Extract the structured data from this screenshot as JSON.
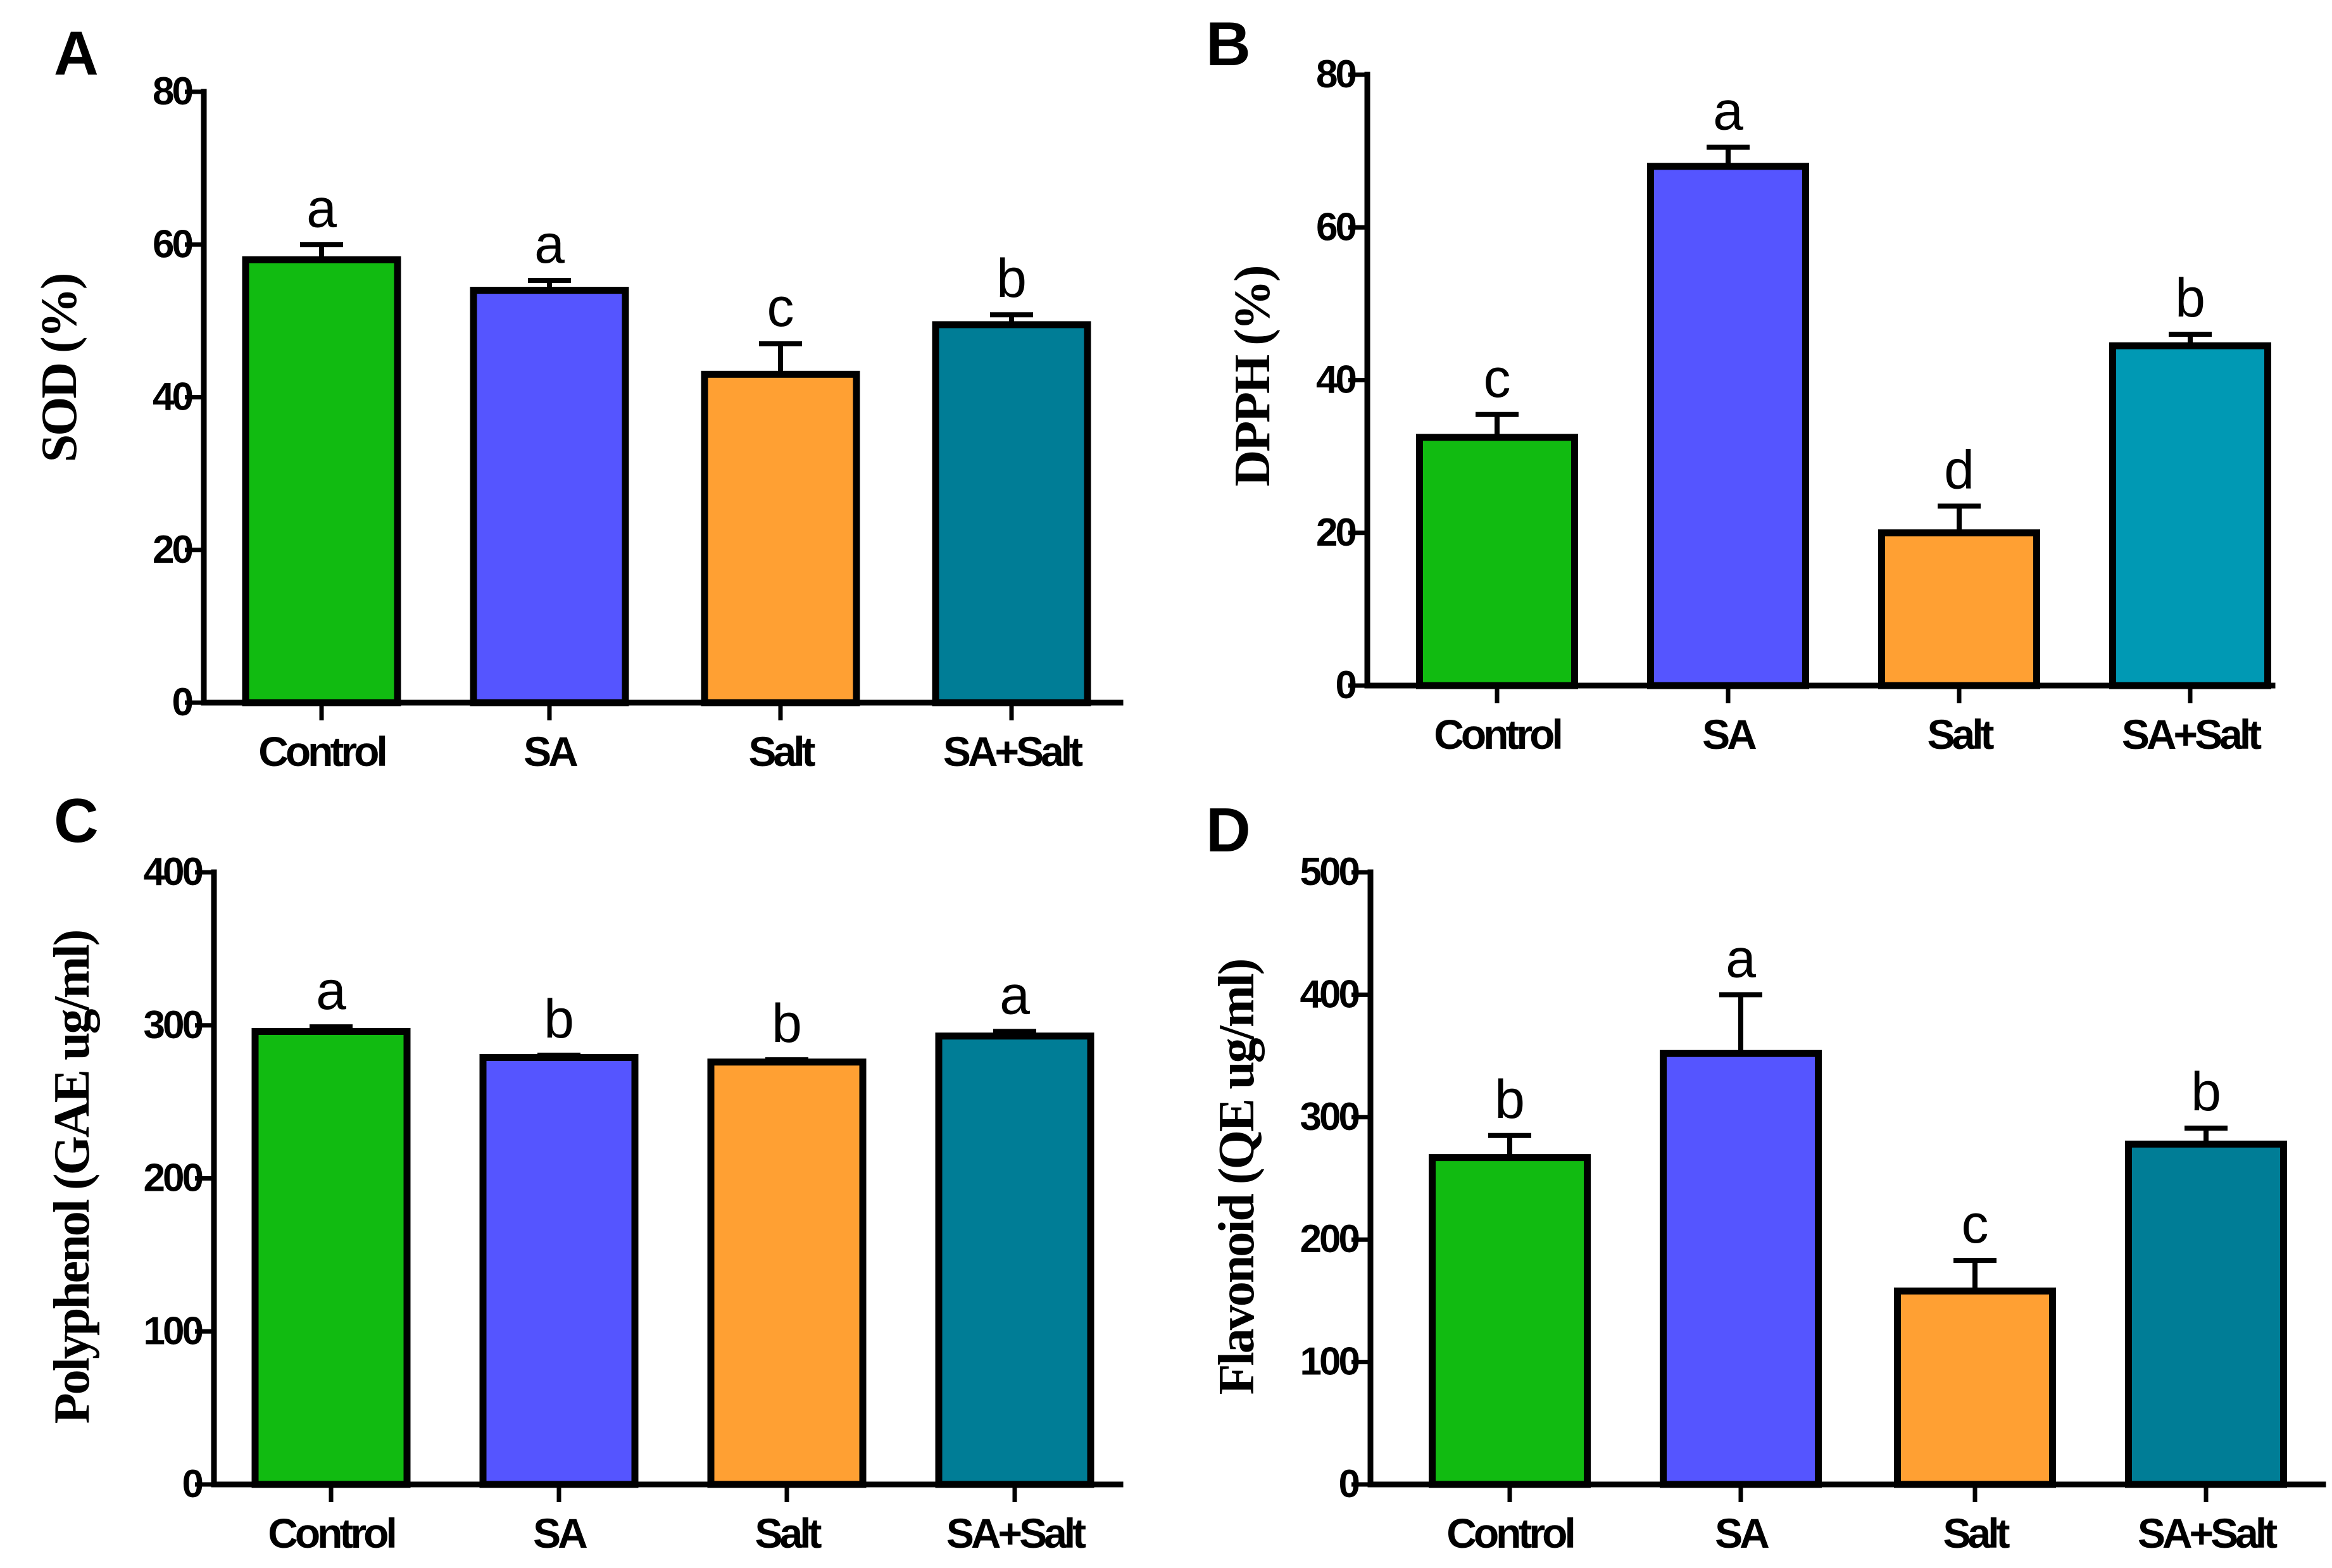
{
  "chart_data": [
    {
      "panel": "A",
      "type": "bar",
      "ylabel": "SOD (%)",
      "ylim": [
        0,
        80
      ],
      "yticks": [
        0,
        20,
        40,
        60,
        80
      ],
      "categories": [
        "Control",
        "SA",
        "Salt",
        "SA+Salt"
      ],
      "values": [
        58,
        54,
        43,
        49.5
      ],
      "errors": [
        2,
        1.3,
        4,
        1.3
      ],
      "labels": [
        "a",
        "a",
        "c",
        "b"
      ],
      "colors": [
        "#11bb11",
        "#5555ff",
        "#ffa033",
        "#007d96"
      ]
    },
    {
      "panel": "B",
      "type": "bar",
      "ylabel": "DPPH (%)",
      "ylim": [
        0,
        80
      ],
      "yticks": [
        0,
        20,
        40,
        60,
        80
      ],
      "categories": [
        "Control",
        "SA",
        "Salt",
        "SA+Salt"
      ],
      "values": [
        32.5,
        68,
        20,
        44.5
      ],
      "errors": [
        3,
        2.5,
        3.5,
        1.5
      ],
      "labels": [
        "c",
        "a",
        "d",
        "b"
      ],
      "colors": [
        "#11bb11",
        "#5555ff",
        "#ffa033",
        "#0099b4"
      ]
    },
    {
      "panel": "C",
      "type": "bar",
      "ylabel": "Polyphenol (GAE ug/ml)",
      "ylim": [
        0,
        400
      ],
      "yticks": [
        0,
        100,
        200,
        300,
        400
      ],
      "categories": [
        "Control",
        "SA",
        "Salt",
        "SA+Salt"
      ],
      "values": [
        296,
        279,
        276,
        293
      ],
      "errors": [
        3,
        1.5,
        1.5,
        3
      ],
      "labels": [
        "a",
        "b",
        "b",
        "a"
      ],
      "colors": [
        "#11bb11",
        "#5555ff",
        "#ffa033",
        "#007d96"
      ]
    },
    {
      "panel": "D",
      "type": "bar",
      "ylabel": "Flavonoid (QE ug/ml)",
      "ylim": [
        0,
        500
      ],
      "yticks": [
        0,
        100,
        200,
        300,
        400,
        500
      ],
      "categories": [
        "Control",
        "SA",
        "Salt",
        "SA+Salt"
      ],
      "values": [
        267,
        352,
        158,
        278
      ],
      "errors": [
        18,
        48,
        25,
        13
      ],
      "labels": [
        "b",
        "a",
        "c",
        "b"
      ],
      "colors": [
        "#11bb11",
        "#5555ff",
        "#ffa033",
        "#007d96"
      ]
    }
  ]
}
